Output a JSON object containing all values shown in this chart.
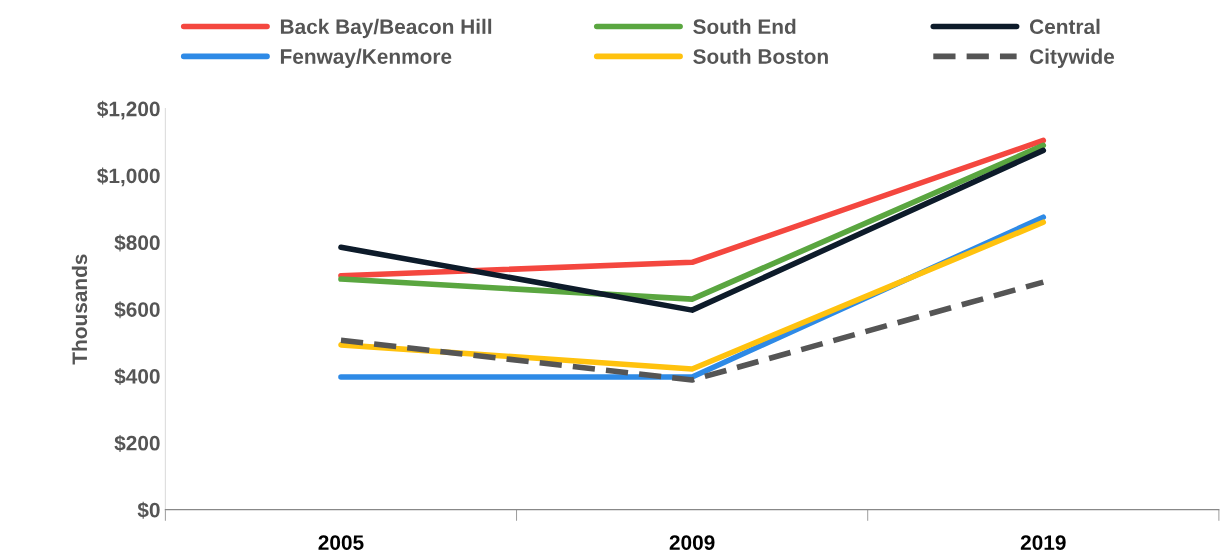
{
  "chart_data": {
    "type": "line",
    "ylabel": "Thousands",
    "categories": [
      "2005",
      "2009",
      "2019"
    ],
    "series": [
      {
        "name": "Back Bay/Beacon Hill",
        "color": "#f4473f",
        "values": [
          700,
          740,
          1105
        ]
      },
      {
        "name": "South End",
        "color": "#5aa640",
        "values": [
          690,
          630,
          1090
        ]
      },
      {
        "name": "Central",
        "color": "#0d1b2a",
        "values": [
          785,
          597,
          1075
        ]
      },
      {
        "name": "Fenway/Kenmore",
        "color": "#2e8ae6",
        "values": [
          397,
          397,
          875
        ]
      },
      {
        "name": "South Boston",
        "color": "#ffc20e",
        "values": [
          493,
          421,
          860
        ]
      },
      {
        "name": "Citywide",
        "color": "#555555",
        "values": [
          507,
          388,
          681
        ],
        "line_style": "dashed"
      }
    ],
    "ylim": [
      0,
      1200
    ],
    "yticks": [
      {
        "value": 0,
        "label": "$0"
      },
      {
        "value": 200,
        "label": "$200"
      },
      {
        "value": 400,
        "label": "$400"
      },
      {
        "value": 600,
        "label": "$600"
      },
      {
        "value": 800,
        "label": "$800"
      },
      {
        "value": 1000,
        "label": "$1,000"
      },
      {
        "value": 1200,
        "label": "$1,200"
      }
    ],
    "grid": false,
    "legend": "top",
    "marker": "none",
    "line_style": "solid"
  }
}
